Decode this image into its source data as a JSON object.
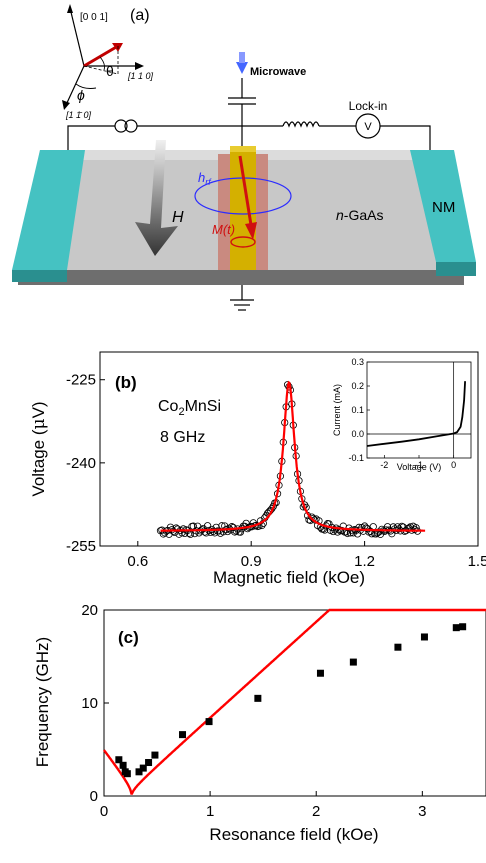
{
  "panel_a": {
    "label": "(a)",
    "axes": {
      "z": "[0 0 1]",
      "x": "[1 1 0]",
      "y": "[1 1̄ 0]",
      "theta": "θ",
      "phi": "ϕ"
    },
    "microwave": "Microwave",
    "lockin": "Lock-in",
    "voltmeter": "V",
    "hrf": "h",
    "hrf_sub": "rf",
    "h_field": "H",
    "mt": "M(t)",
    "ngaas_prefix": "n",
    "ngaas_suffix": "-GaAs",
    "nm": "NM",
    "colors": {
      "contact": "#45c2c2",
      "substrate": "#c8c8c8",
      "strip": "#d4b000",
      "stripe_bg": "#c98a80",
      "microwave": "#2c2cff",
      "magnet": "#d01010"
    }
  },
  "chart_data": [
    {
      "type": "scatter",
      "panel_label": "(b)",
      "material_prefix": "Co",
      "material_sub": "2",
      "material_suffix": "MnSi",
      "frequency_label": "8 GHz",
      "xlabel": "Magnetic field (kOe)",
      "ylabel_prefix": "Voltage (",
      "ylabel_mu": "μ",
      "ylabel_suffix": "V)",
      "xlim": [
        0.5,
        1.5
      ],
      "ylim": [
        -255,
        -220
      ],
      "xticks": [
        "0.6",
        "0.9",
        "1.2",
        "1.5"
      ],
      "yticks": [
        "-225",
        "-240",
        "-255"
      ],
      "fit": {
        "baseline": -252.3,
        "center": 1.0,
        "width": 0.018,
        "amplitude": 26.8
      },
      "data_range": [
        0.66,
        1.34
      ],
      "series": [
        {
          "values": "Lorentzian resonance peak at 1.0 kOe reaching -225.5 µV"
        }
      ],
      "inset": {
        "xlabel": "Voltage (V)",
        "ylabel": "Current (mA)",
        "xlim": [
          -2.5,
          0.5
        ],
        "ylim": [
          -0.1,
          0.3
        ],
        "xticks": [
          "-2",
          "-1",
          "0"
        ],
        "yticks": [
          "0.3",
          "0.2",
          "0.1",
          "0.0",
          "-0.1"
        ],
        "curve": [
          [
            -2.5,
            -0.05
          ],
          [
            -2.0,
            -0.041
          ],
          [
            -1.5,
            -0.032
          ],
          [
            -1.0,
            -0.022
          ],
          [
            -0.5,
            -0.01
          ],
          [
            0.0,
            0.002
          ],
          [
            0.1,
            0.008
          ],
          [
            0.2,
            0.03
          ],
          [
            0.25,
            0.07
          ],
          [
            0.3,
            0.14
          ],
          [
            0.33,
            0.22
          ]
        ]
      }
    },
    {
      "type": "scatter",
      "panel_label": "(c)",
      "xlabel": "Resonance field (kOe)",
      "ylabel": "Frequency (GHz)",
      "xlim": [
        0,
        3.6
      ],
      "ylim": [
        0,
        20
      ],
      "xticks": [
        "0",
        "1",
        "2",
        "3"
      ],
      "yticks": [
        "0",
        "10",
        "20"
      ],
      "points": [
        [
          0.14,
          3.9
        ],
        [
          0.18,
          3.3
        ],
        [
          0.2,
          2.6
        ],
        [
          0.22,
          2.4
        ],
        [
          0.33,
          2.6
        ],
        [
          0.37,
          3.0
        ],
        [
          0.42,
          3.6
        ],
        [
          0.48,
          4.4
        ],
        [
          0.74,
          6.6
        ],
        [
          0.99,
          8.0
        ],
        [
          1.45,
          10.5
        ],
        [
          2.04,
          13.2
        ],
        [
          2.35,
          14.4
        ],
        [
          2.77,
          16.0
        ],
        [
          3.02,
          17.1
        ],
        [
          3.32,
          18.1
        ],
        [
          3.38,
          18.2
        ]
      ],
      "fit": {
        "zero_field": 0.26
      }
    }
  ]
}
